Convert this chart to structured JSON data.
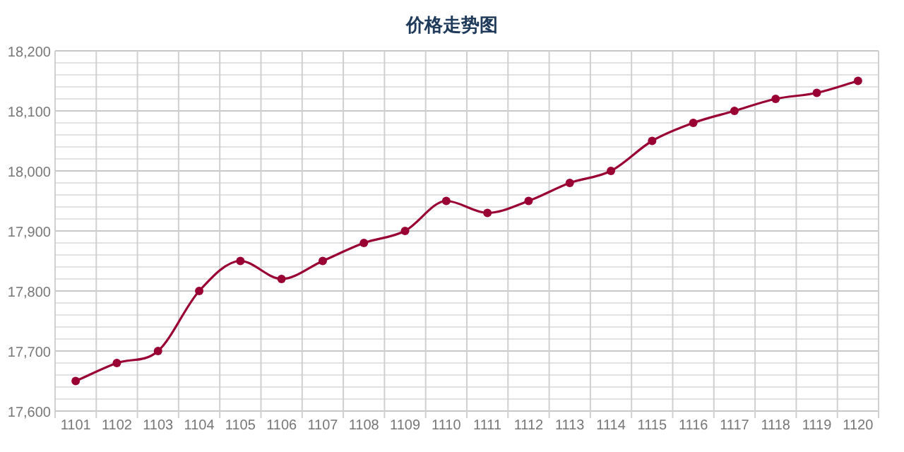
{
  "chart_data": {
    "type": "line",
    "title": "价格走势图",
    "categories": [
      "1101",
      "1102",
      "1103",
      "1104",
      "1105",
      "1106",
      "1107",
      "1108",
      "1109",
      "1110",
      "1111",
      "1112",
      "1113",
      "1114",
      "1115",
      "1116",
      "1117",
      "1118",
      "1119",
      "1120"
    ],
    "series": [
      {
        "color": "#990033",
        "values": [
          17650,
          17680,
          17700,
          17800,
          17850,
          17820,
          17850,
          17880,
          17900,
          17950,
          17930,
          17950,
          17980,
          18000,
          18050,
          18080,
          18100,
          18120,
          18130,
          18150
        ]
      }
    ],
    "ylim": [
      17600,
      18200
    ],
    "yticks": [
      {
        "value": 17600,
        "label": "17,600"
      },
      {
        "value": 17620,
        "label": null
      },
      {
        "value": 17640,
        "label": null
      },
      {
        "value": 17660,
        "label": null
      },
      {
        "value": 17680,
        "label": null
      },
      {
        "value": 17700,
        "label": "17,700"
      },
      {
        "value": 17720,
        "label": null
      },
      {
        "value": 17740,
        "label": null
      },
      {
        "value": 17760,
        "label": null
      },
      {
        "value": 17780,
        "label": null
      },
      {
        "value": 17800,
        "label": "17,800"
      },
      {
        "value": 17820,
        "label": null
      },
      {
        "value": 17840,
        "label": null
      },
      {
        "value": 17860,
        "label": null
      },
      {
        "value": 17880,
        "label": null
      },
      {
        "value": 17900,
        "label": "17,900"
      },
      {
        "value": 17920,
        "label": null
      },
      {
        "value": 17940,
        "label": null
      },
      {
        "value": 17960,
        "label": null
      },
      {
        "value": 17980,
        "label": null
      },
      {
        "value": 18000,
        "label": "18,000"
      },
      {
        "value": 18020,
        "label": null
      },
      {
        "value": 18040,
        "label": null
      },
      {
        "value": 18060,
        "label": null
      },
      {
        "value": 18080,
        "label": null
      },
      {
        "value": 18100,
        "label": "18,100"
      },
      {
        "value": 18120,
        "label": null
      },
      {
        "value": 18140,
        "label": null
      },
      {
        "value": 18160,
        "label": null
      },
      {
        "value": 18180,
        "label": null
      },
      {
        "value": 18200,
        "label": "18,200"
      }
    ],
    "grid": true,
    "marker": "circle",
    "line_style": "solid"
  }
}
